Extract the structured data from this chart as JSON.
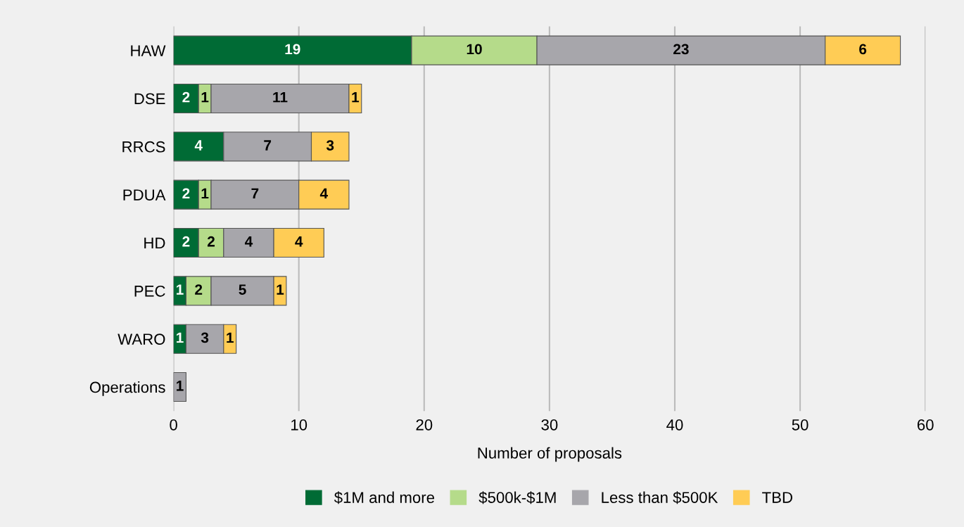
{
  "chart_data": {
    "type": "bar",
    "orientation": "horizontal",
    "stacked": true,
    "xlabel": "Number of proposals",
    "categories": [
      "HAW",
      "DSE",
      "RRCS",
      "PDUA",
      "HD",
      "PEC",
      "WARO",
      "Operations"
    ],
    "series": [
      {
        "name": "$1M and more",
        "color": "#006b35",
        "values": [
          19,
          2,
          4,
          2,
          2,
          1,
          1,
          null
        ]
      },
      {
        "name": "$500k-$1M",
        "color": "#b5db8a",
        "values": [
          10,
          1,
          null,
          1,
          2,
          2,
          null,
          null
        ]
      },
      {
        "name": "Less than $500K",
        "color": "#a7a6ab",
        "values": [
          23,
          11,
          7,
          7,
          4,
          5,
          3,
          1
        ]
      },
      {
        "name": "TBD",
        "color": "#ffcc55",
        "values": [
          6,
          1,
          3,
          4,
          4,
          1,
          1,
          null
        ]
      }
    ],
    "xlim": [
      0,
      60
    ],
    "xticks": [
      0,
      10,
      20,
      30,
      40,
      50,
      60
    ],
    "grid": "x",
    "legend": "bottom",
    "data_labels": true
  }
}
